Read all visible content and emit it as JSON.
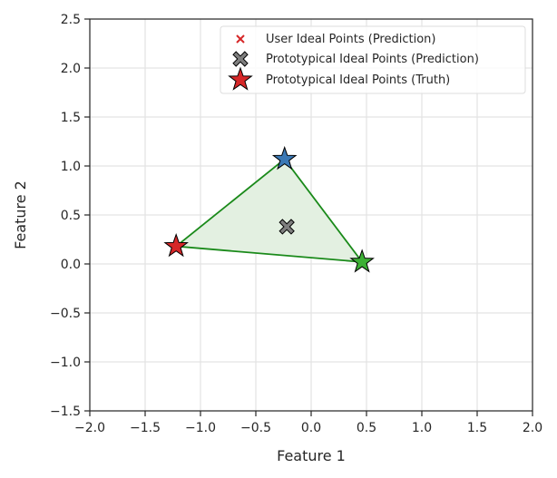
{
  "chart_data": {
    "type": "scatter",
    "xlabel": "Feature 1",
    "ylabel": "Feature 2",
    "xlim": [
      -2.0,
      2.0
    ],
    "ylim": [
      -1.5,
      2.5
    ],
    "xticks": [
      -2.0,
      -1.5,
      -1.0,
      -0.5,
      0.0,
      0.5,
      1.0,
      1.5,
      2.0
    ],
    "yticks": [
      -1.5,
      -1.0,
      -0.5,
      0.0,
      0.5,
      1.0,
      1.5,
      2.0,
      2.5
    ],
    "xtick_labels": [
      "−2.0",
      "−1.5",
      "−1.0",
      "−0.5",
      "0.0",
      "0.5",
      "1.0",
      "1.5",
      "2.0"
    ],
    "ytick_labels": [
      "−1.5",
      "−1.0",
      "−0.5",
      "0.0",
      "0.5",
      "1.0",
      "1.5",
      "2.0",
      "2.5"
    ],
    "grid": true,
    "legend_position": "top-right",
    "series": [
      {
        "name": "User Ideal Points (Prediction)",
        "marker": "x",
        "color": "#d62728",
        "points": []
      },
      {
        "name": "Prototypical Ideal Points (Prediction)",
        "marker": "X",
        "color": "#7f7f7f",
        "points": [
          {
            "x": -0.22,
            "y": 0.38
          }
        ]
      },
      {
        "name": "Prototypical Ideal Points (Truth)",
        "marker": "star",
        "color": "#d62728",
        "points": [
          {
            "x": -0.24,
            "y": 1.07,
            "color": "#3a78b5"
          },
          {
            "x": -1.22,
            "y": 0.18,
            "color": "#d62728"
          },
          {
            "x": 0.46,
            "y": 0.02,
            "color": "#3cb034"
          }
        ]
      }
    ],
    "polygon": {
      "vertices": [
        {
          "x": -0.24,
          "y": 1.07
        },
        {
          "x": 0.46,
          "y": 0.02
        },
        {
          "x": -1.22,
          "y": 0.18
        }
      ],
      "edge_color": "#1a8a1a",
      "fill_color": "#e3f0e1"
    }
  }
}
